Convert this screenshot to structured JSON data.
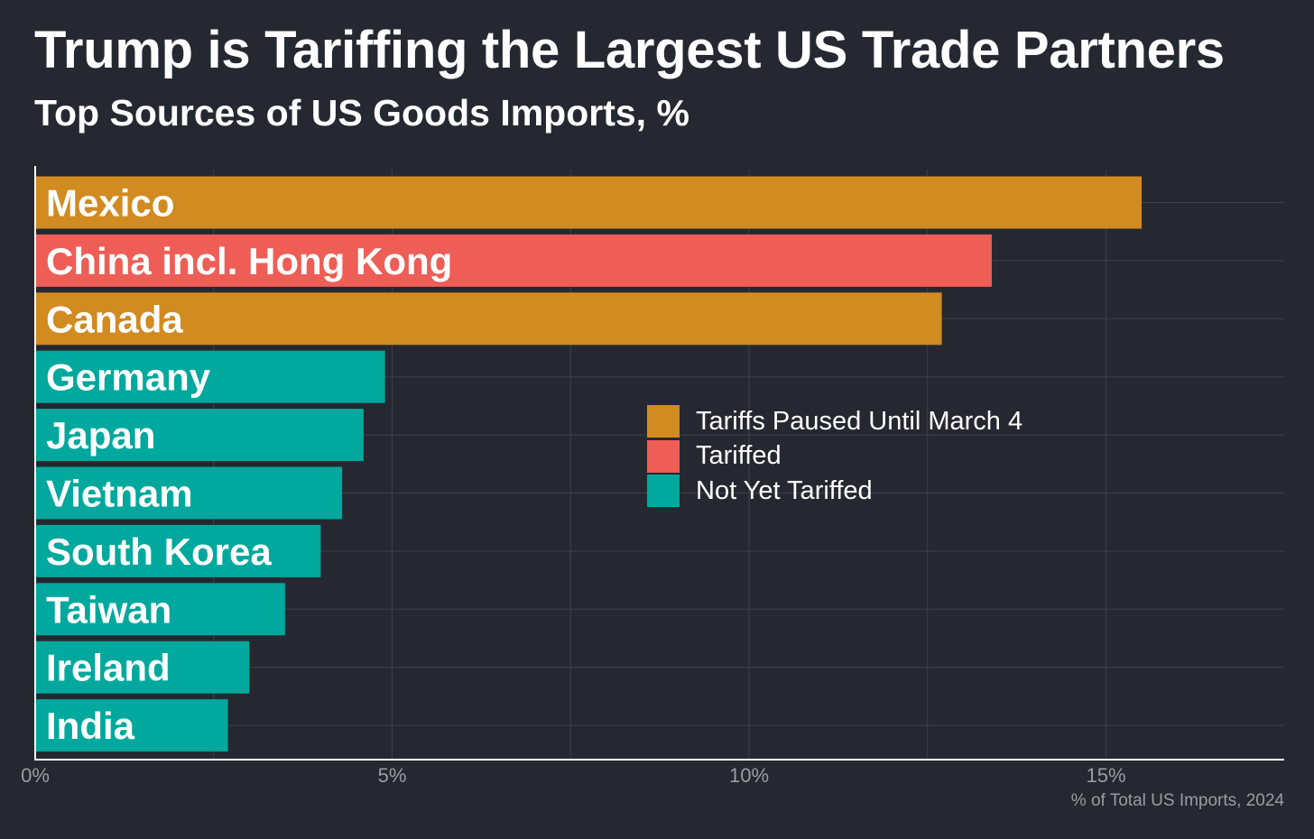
{
  "header": {
    "title": "Trump is Tariffing the Largest US Trade Partners",
    "subtitle": "Top Sources of US Goods Imports, %"
  },
  "colors": {
    "background": "#252830",
    "paused": "#D18B21",
    "tariffed": "#EE5E56",
    "not_yet": "#00A89D",
    "grid": "#3c4049",
    "axis": "#ffffff",
    "tick_text": "#9a9ca3"
  },
  "chart_data": {
    "type": "bar",
    "orientation": "horizontal",
    "title": "Trump is Tariffing the Largest US Trade Partners",
    "subtitle": "Top Sources of US Goods Imports, %",
    "xlabel": "% of Total US Imports, 2024",
    "ylabel": "",
    "xlim": [
      0,
      17.5
    ],
    "xticks": [
      0,
      5,
      10,
      15
    ],
    "xtick_labels": [
      "0%",
      "5%",
      "10%",
      "15%"
    ],
    "grid": true,
    "legend_position": "center-right",
    "categories": [
      "Mexico",
      "China incl. Hong Kong",
      "Canada",
      "Germany",
      "Japan",
      "Vietnam",
      "South Korea",
      "Taiwan",
      "Ireland",
      "India"
    ],
    "values": [
      15.5,
      13.4,
      12.7,
      4.9,
      4.6,
      4.3,
      4.0,
      3.5,
      3.0,
      2.7
    ],
    "status": [
      "paused",
      "tariffed",
      "paused",
      "not_yet",
      "not_yet",
      "not_yet",
      "not_yet",
      "not_yet",
      "not_yet",
      "not_yet"
    ],
    "legend": [
      {
        "key": "paused",
        "label": "Tariffs Paused Until March 4"
      },
      {
        "key": "tariffed",
        "label": "Tariffed"
      },
      {
        "key": "not_yet",
        "label": "Not Yet Tariffed"
      }
    ]
  }
}
